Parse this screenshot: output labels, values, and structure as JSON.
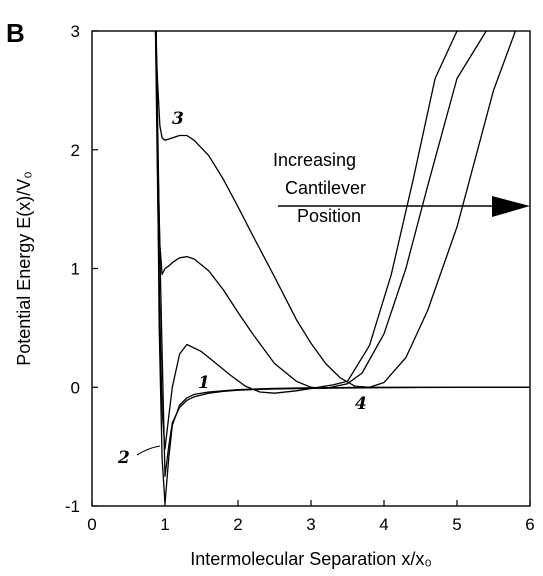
{
  "chart_data": {
    "type": "line",
    "panel_label": "B",
    "xlabel": "Intermolecular Separation x/x₀",
    "ylabel": "Potential Energy E(x)/V₀",
    "xlim": [
      0,
      6
    ],
    "ylim": [
      -1,
      3
    ],
    "xticks": [
      "0",
      "1",
      "2",
      "3",
      "4",
      "5",
      "6"
    ],
    "yticks": [
      "-1",
      "0",
      "1",
      "2",
      "3"
    ],
    "annotation": [
      "Increasing",
      "Cantilever",
      "Position"
    ],
    "curve_labels": [
      "1",
      "2",
      "3",
      "4"
    ],
    "series": [
      {
        "x": [
          0.88,
          0.92,
          0.96,
          1.0,
          1.05,
          1.1,
          1.2,
          1.3,
          1.4,
          1.6,
          1.8,
          2.0,
          2.2,
          2.5,
          3.0,
          3.5,
          4.0,
          4.5,
          5.0,
          5.5,
          6.0
        ],
        "y": [
          3.0,
          1.4,
          0.3,
          -0.75,
          -0.5,
          -0.3,
          -0.17,
          -0.11,
          -0.08,
          -0.05,
          -0.035,
          -0.025,
          -0.02,
          -0.015,
          -0.01,
          -0.006,
          -0.004,
          -0.002,
          -0.001,
          0.0,
          0.0
        ]
      },
      {
        "x": [
          0.87,
          0.9,
          0.93,
          0.96,
          1.0,
          1.05,
          1.1,
          1.2,
          1.3,
          1.5,
          1.7,
          1.9,
          2.1,
          2.3,
          2.5,
          2.8,
          3.1,
          3.3,
          3.5,
          3.8,
          4.1,
          4.4,
          4.7,
          5.0
        ],
        "y": [
          3.0,
          1.6,
          0.6,
          -0.2,
          -0.52,
          -0.25,
          0.0,
          0.28,
          0.36,
          0.3,
          0.2,
          0.1,
          0.01,
          -0.04,
          -0.05,
          -0.03,
          0.0,
          0.02,
          0.05,
          0.35,
          0.95,
          1.75,
          2.6,
          3.0
        ]
      },
      {
        "x": [
          0.87,
          0.9,
          0.93,
          0.96,
          1.0,
          1.05,
          1.1,
          1.2,
          1.3,
          1.4,
          1.6,
          1.8,
          2.0,
          2.2,
          2.5,
          2.8,
          3.0,
          3.2,
          3.5,
          3.7,
          4.0,
          4.3,
          4.6,
          5.0,
          5.4
        ],
        "y": [
          3.0,
          2.0,
          1.2,
          0.95,
          1.0,
          1.02,
          1.05,
          1.09,
          1.1,
          1.08,
          0.98,
          0.82,
          0.63,
          0.45,
          0.2,
          0.05,
          0.0,
          -0.01,
          0.03,
          0.12,
          0.45,
          1.0,
          1.7,
          2.6,
          3.0
        ]
      },
      {
        "x": [
          0.87,
          0.9,
          0.93,
          0.96,
          1.0,
          1.05,
          1.1,
          1.2,
          1.3,
          1.4,
          1.6,
          1.8,
          2.0,
          2.2,
          2.5,
          2.8,
          3.0,
          3.2,
          3.4,
          3.6,
          3.8,
          4.0,
          4.3,
          4.6,
          5.0,
          5.5,
          5.8
        ],
        "y": [
          3.0,
          2.55,
          2.2,
          2.1,
          2.08,
          2.09,
          2.1,
          2.12,
          2.12,
          2.08,
          1.95,
          1.75,
          1.52,
          1.28,
          0.93,
          0.57,
          0.37,
          0.2,
          0.08,
          0.01,
          0.0,
          0.04,
          0.25,
          0.65,
          1.35,
          2.5,
          3.0
        ]
      },
      {
        "x": [
          0.88,
          0.92,
          0.96,
          1.0,
          1.05,
          1.1,
          1.2,
          1.3,
          1.4,
          1.6,
          1.8,
          2.0,
          2.5,
          3.0,
          3.5,
          3.7,
          4.0,
          4.5,
          5.0,
          5.5,
          6.0
        ],
        "y": [
          3.0,
          0.5,
          -0.6,
          -0.98,
          -0.6,
          -0.32,
          -0.15,
          -0.09,
          -0.06,
          -0.04,
          -0.03,
          -0.02,
          -0.01,
          -0.005,
          -0.002,
          0.0,
          0.0,
          0.0,
          0.0,
          0.0,
          0.0
        ]
      }
    ]
  }
}
